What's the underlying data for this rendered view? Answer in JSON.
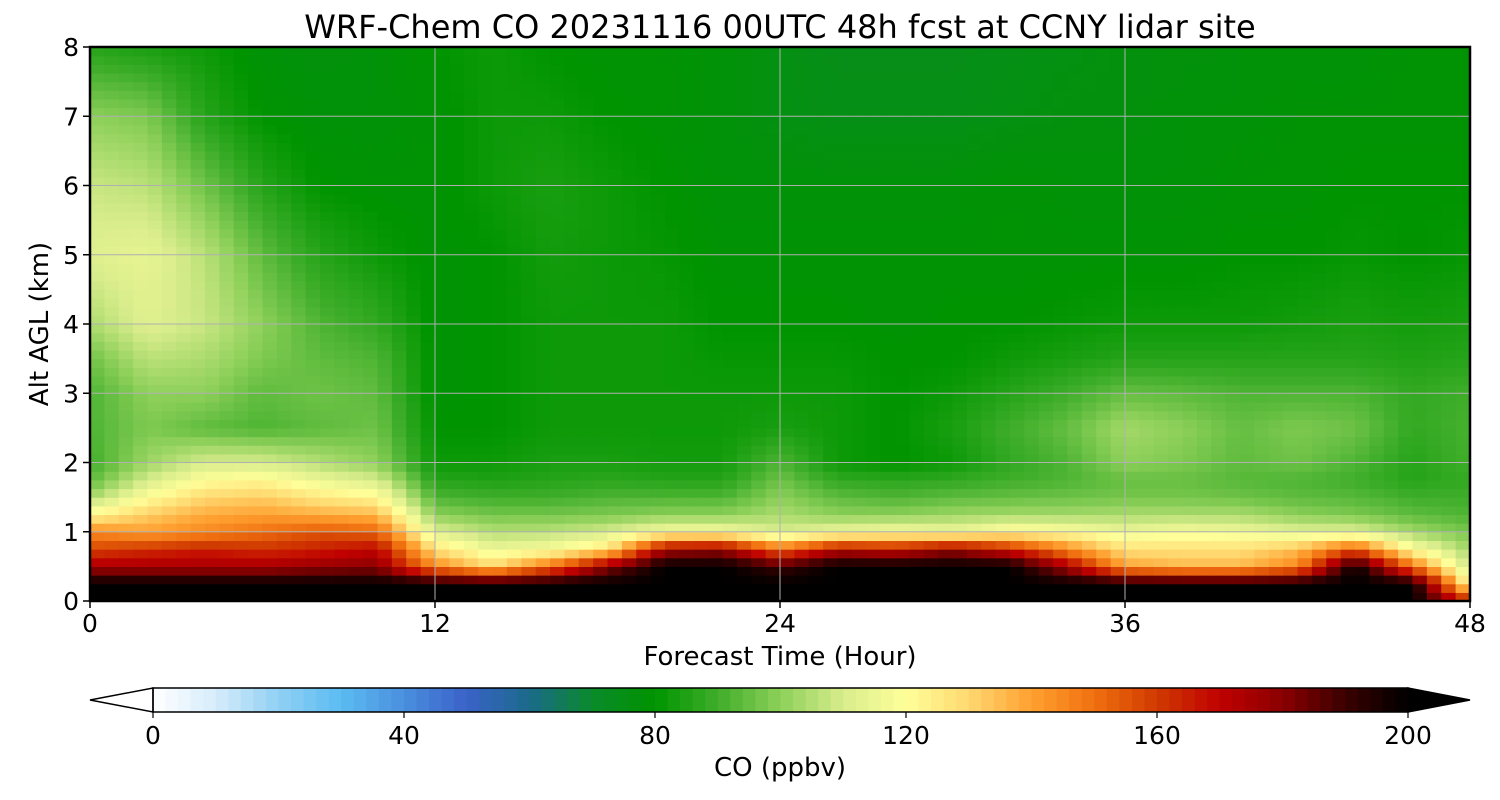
{
  "chart_data": {
    "type": "heatmap",
    "title": "WRF-Chem CO  20231116 00UTC 48h fcst at CCNY lidar site",
    "xlabel": "Forecast Time (Hour)",
    "ylabel": "Alt AGL (km)",
    "xlim": [
      0,
      48
    ],
    "ylim": [
      0,
      8
    ],
    "xticks": [
      0,
      12,
      24,
      36,
      48
    ],
    "yticks": [
      0,
      1,
      2,
      3,
      4,
      5,
      6,
      7,
      8
    ],
    "grid": true,
    "colorbar": {
      "label": "CO  (ppbv)",
      "orientation": "horizontal",
      "placement": "bottom",
      "min": 0,
      "max": 200,
      "ticks": [
        0,
        40,
        80,
        120,
        160,
        200
      ],
      "extend": "both",
      "colors": [
        "#ffffff",
        "#d6ecfb",
        "#90d0f3",
        "#5bbcf2",
        "#4a8ede",
        "#3a62c8",
        "#1a6a8a",
        "#0a8a2a",
        "#009400",
        "#3fae2a",
        "#8ed05a",
        "#d8ec8c",
        "#ffff99",
        "#ffd870",
        "#ffa030",
        "#f07010",
        "#d03a00",
        "#c00000",
        "#8a0000",
        "#3a0000",
        "#000000"
      ]
    },
    "x": [
      0,
      2,
      4,
      6,
      8,
      10,
      12,
      14,
      16,
      18,
      20,
      22,
      24,
      26,
      28,
      30,
      32,
      34,
      36,
      38,
      40,
      42,
      44,
      46,
      48
    ],
    "y": [
      0,
      0.25,
      0.5,
      0.75,
      1,
      1.25,
      1.5,
      1.75,
      2,
      2.5,
      3,
      3.5,
      4,
      5,
      6,
      7,
      8
    ],
    "z": [
      [
        200,
        200,
        200,
        200,
        200,
        200,
        200,
        200,
        200,
        200,
        200,
        200,
        200,
        200,
        200,
        200,
        200,
        200,
        200,
        200,
        200,
        200,
        200,
        200,
        165
      ],
      [
        200,
        200,
        200,
        200,
        200,
        200,
        200,
        200,
        200,
        200,
        200,
        200,
        200,
        200,
        200,
        200,
        200,
        200,
        200,
        200,
        200,
        200,
        200,
        200,
        120
      ],
      [
        175,
        175,
        175,
        175,
        178,
        180,
        145,
        130,
        150,
        180,
        200,
        200,
        190,
        200,
        200,
        200,
        200,
        175,
        140,
        136,
        136,
        145,
        200,
        150,
        108
      ],
      [
        158,
        162,
        165,
        162,
        165,
        170,
        128,
        115,
        118,
        128,
        175,
        178,
        150,
        172,
        168,
        178,
        165,
        145,
        128,
        128,
        128,
        135,
        155,
        120,
        103
      ],
      [
        145,
        140,
        145,
        150,
        155,
        152,
        112,
        105,
        106,
        110,
        118,
        118,
        110,
        115,
        118,
        115,
        122,
        120,
        115,
        118,
        116,
        112,
        112,
        103,
        97
      ],
      [
        122,
        132,
        138,
        140,
        138,
        136,
        100,
        97,
        97,
        98,
        100,
        100,
        104,
        100,
        100,
        102,
        103,
        103,
        104,
        104,
        104,
        100,
        98,
        94,
        92
      ],
      [
        104,
        120,
        130,
        132,
        126,
        122,
        92,
        90,
        90,
        92,
        92,
        92,
        100,
        94,
        92,
        94,
        95,
        96,
        97,
        97,
        96,
        94,
        93,
        90,
        90
      ],
      [
        94,
        110,
        120,
        122,
        115,
        110,
        86,
        85,
        86,
        87,
        86,
        86,
        96,
        88,
        87,
        88,
        90,
        92,
        95,
        95,
        93,
        92,
        90,
        86,
        88
      ],
      [
        90,
        102,
        110,
        110,
        105,
        100,
        82,
        82,
        84,
        84,
        83,
        83,
        92,
        82,
        80,
        82,
        88,
        92,
        100,
        98,
        94,
        96,
        92,
        86,
        90
      ],
      [
        92,
        98,
        94,
        92,
        94,
        96,
        80,
        80,
        82,
        82,
        82,
        82,
        84,
        82,
        80,
        84,
        90,
        95,
        103,
        100,
        95,
        98,
        96,
        88,
        91
      ],
      [
        92,
        100,
        100,
        94,
        96,
        94,
        79,
        80,
        82,
        82,
        82,
        82,
        82,
        82,
        80,
        82,
        86,
        90,
        95,
        94,
        92,
        92,
        92,
        88,
        90
      ],
      [
        96,
        106,
        104,
        98,
        94,
        92,
        79,
        80,
        82,
        82,
        82,
        81,
        81,
        81,
        80,
        80,
        82,
        84,
        86,
        86,
        86,
        86,
        86,
        85,
        86
      ],
      [
        104,
        112,
        108,
        100,
        92,
        88,
        79,
        80,
        82,
        82,
        82,
        80,
        80,
        80,
        79,
        80,
        80,
        81,
        82,
        82,
        82,
        83,
        84,
        83,
        84
      ],
      [
        112,
        114,
        106,
        94,
        86,
        82,
        79,
        80,
        83,
        82,
        81,
        79,
        79,
        79,
        79,
        79,
        79,
        79,
        79,
        79,
        80,
        80,
        81,
        80,
        81
      ],
      [
        108,
        106,
        96,
        86,
        80,
        79,
        79,
        82,
        84,
        82,
        80,
        78,
        78,
        78,
        78,
        78,
        79,
        78,
        78,
        78,
        79,
        79,
        80,
        80,
        80
      ],
      [
        100,
        98,
        86,
        80,
        78,
        78,
        79,
        82,
        82,
        80,
        79,
        78,
        76,
        75,
        75,
        75,
        76,
        77,
        77,
        78,
        78,
        79,
        79,
        79,
        79
      ],
      [
        86,
        84,
        82,
        78,
        77,
        78,
        80,
        82,
        80,
        79,
        79,
        78,
        76,
        74,
        74,
        74,
        75,
        76,
        77,
        77,
        78,
        78,
        78,
        79,
        79
      ]
    ]
  }
}
